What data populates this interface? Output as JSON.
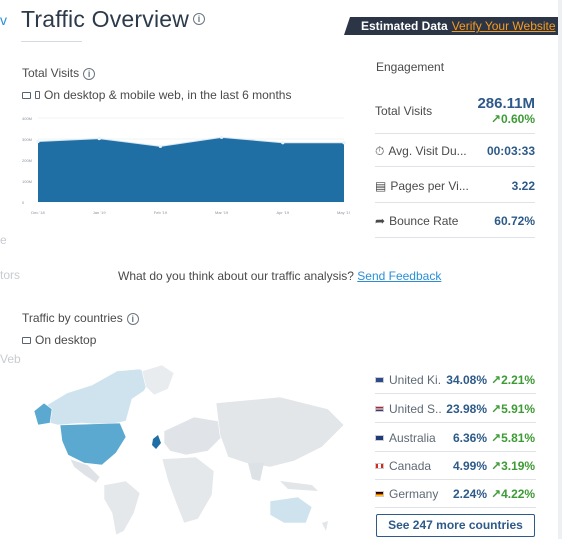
{
  "sidebar_fragments": [
    "v",
    "e",
    "tors",
    "Veb"
  ],
  "page": {
    "title": "Traffic Overview",
    "banner_label": "Estimated Data",
    "banner_link": "Verify Your Website"
  },
  "total_visits": {
    "label": "Total Visits",
    "sub": "On desktop & mobile web, in the last 6 months"
  },
  "chart_data": {
    "type": "area",
    "categories": [
      "Dec '18",
      "Jan '19",
      "Feb '19",
      "Mar '19",
      "Apr '19",
      "May '19"
    ],
    "values": [
      288,
      302,
      265,
      308,
      282,
      282
    ],
    "y_ticks": [
      "400M",
      "300M",
      "200M",
      "100M",
      "0"
    ],
    "ylim": [
      0,
      400
    ],
    "color": "#1f6fa5",
    "grid": true
  },
  "engagement": {
    "title": "Engagement",
    "total_visits_label": "Total Visits",
    "total_visits_value": "286.11M",
    "total_visits_change": "0.60%",
    "rows": [
      {
        "label": "Avg. Visit Du...",
        "value": "00:03:33",
        "icon": "stopwatch-icon"
      },
      {
        "label": "Pages per Vi...",
        "value": "3.22",
        "icon": "pages-icon"
      },
      {
        "label": "Bounce Rate",
        "value": "60.72%",
        "icon": "bounce-arrow-icon"
      }
    ]
  },
  "feedback": {
    "question": "What do you think about our traffic analysis?",
    "link": "Send Feedback"
  },
  "countries": {
    "label": "Traffic by countries",
    "sub": "On desktop",
    "rows": [
      {
        "name": "United Ki...",
        "pct": "34.08%",
        "change": "2.21%"
      },
      {
        "name": "United S...",
        "pct": "23.98%",
        "change": "5.91%"
      },
      {
        "name": "Australia",
        "pct": "6.36%",
        "change": "5.81%"
      },
      {
        "name": "Canada",
        "pct": "4.99%",
        "change": "3.19%"
      },
      {
        "name": "Germany",
        "pct": "2.24%",
        "change": "4.22%"
      }
    ],
    "see_more": "See 247 more countries"
  },
  "colors": {
    "accent": "#2d5a88",
    "positive": "#3d9b35",
    "banner_bg": "#2b3546",
    "banner_link": "#f59b22"
  }
}
